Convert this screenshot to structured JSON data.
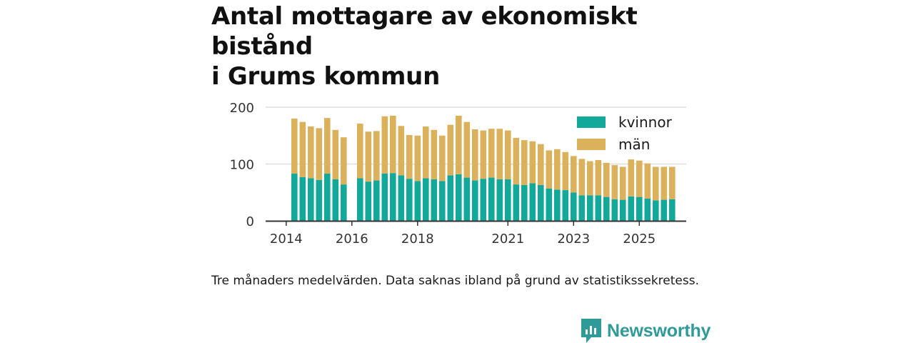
{
  "title_line1": "Antal mottagare av ekonomiskt bistånd",
  "title_line2": "i Grums kommun",
  "caption": "Tre månaders medelvärden. Data saknas ibland på grund av statistikssekretess.",
  "brand": {
    "name": "Newsworthy",
    "icon": "newsworthy-logo-icon"
  },
  "colors": {
    "kvinnor": "#12a89a",
    "man": "#dcb15c",
    "grid": "#dddddd",
    "axis": "#333333"
  },
  "chart_data": {
    "type": "bar",
    "stacked": true,
    "title": "Antal mottagare av ekonomiskt bistånd i Grums kommun",
    "xlabel": "",
    "ylabel": "",
    "ylim": [
      0,
      200
    ],
    "yticks": [
      0,
      100,
      200
    ],
    "x_tick_labels": [
      {
        "label": "2014",
        "index": -1
      },
      {
        "label": "2016",
        "index": 7
      },
      {
        "label": "2018",
        "index": 15
      },
      {
        "label": "2021",
        "index": 26
      },
      {
        "label": "2023",
        "index": 34
      },
      {
        "label": "2025",
        "index": 42
      }
    ],
    "legend": [
      "kvinnor",
      "män"
    ],
    "legend_position": "top-right",
    "series": [
      {
        "name": "kvinnor",
        "values": [
          83,
          77,
          75,
          72,
          83,
          73,
          64,
          null,
          75,
          69,
          71,
          83,
          84,
          80,
          74,
          70,
          75,
          73,
          70,
          80,
          82,
          76,
          71,
          74,
          76,
          73,
          73,
          64,
          63,
          66,
          63,
          57,
          55,
          54,
          50,
          45,
          45,
          45,
          42,
          38,
          37,
          43,
          42,
          39,
          36,
          37,
          38
        ]
      },
      {
        "name": "män",
        "values": [
          97,
          97,
          91,
          91,
          98,
          87,
          83,
          null,
          96,
          88,
          87,
          101,
          101,
          87,
          77,
          80,
          91,
          87,
          80,
          89,
          103,
          98,
          90,
          85,
          86,
          89,
          86,
          82,
          79,
          74,
          72,
          67,
          71,
          67,
          64,
          64,
          60,
          62,
          60,
          60,
          58,
          65,
          64,
          62,
          59,
          58,
          57
        ]
      }
    ]
  }
}
